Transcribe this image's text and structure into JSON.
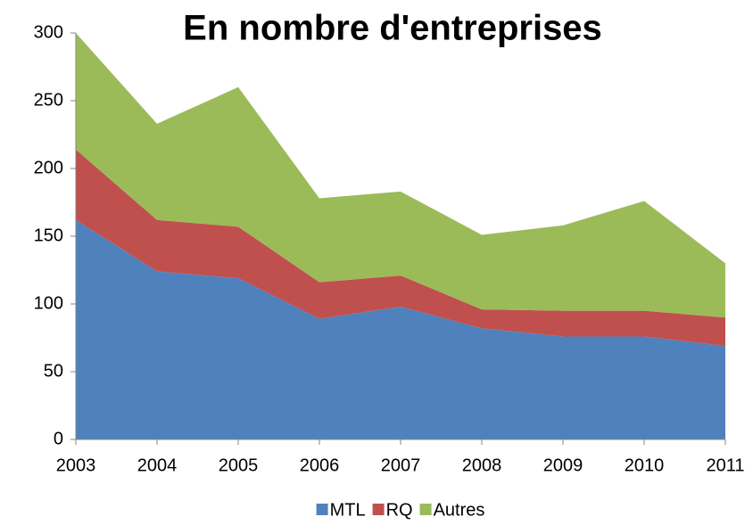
{
  "chart_data": {
    "type": "stacked_area",
    "title": "En nombre d'entreprises",
    "categories": [
      "2003",
      "2004",
      "2005",
      "2006",
      "2007",
      "2008",
      "2009",
      "2010",
      "2011"
    ],
    "series": [
      {
        "name": "MTL",
        "color": "#4f81bd",
        "values": [
          162,
          124,
          119,
          89,
          98,
          82,
          76,
          76,
          69
        ]
      },
      {
        "name": "RQ",
        "color": "#c0504d",
        "values": [
          52,
          38,
          38,
          27,
          23,
          14,
          19,
          19,
          21
        ]
      },
      {
        "name": "Autres",
        "color": "#9bbb59",
        "values": [
          86,
          71,
          103,
          62,
          62,
          55,
          63,
          81,
          40
        ]
      }
    ],
    "ylim": [
      0,
      300
    ],
    "yticks": [
      0,
      50,
      100,
      150,
      200,
      250,
      300
    ],
    "legend": "bottom"
  }
}
